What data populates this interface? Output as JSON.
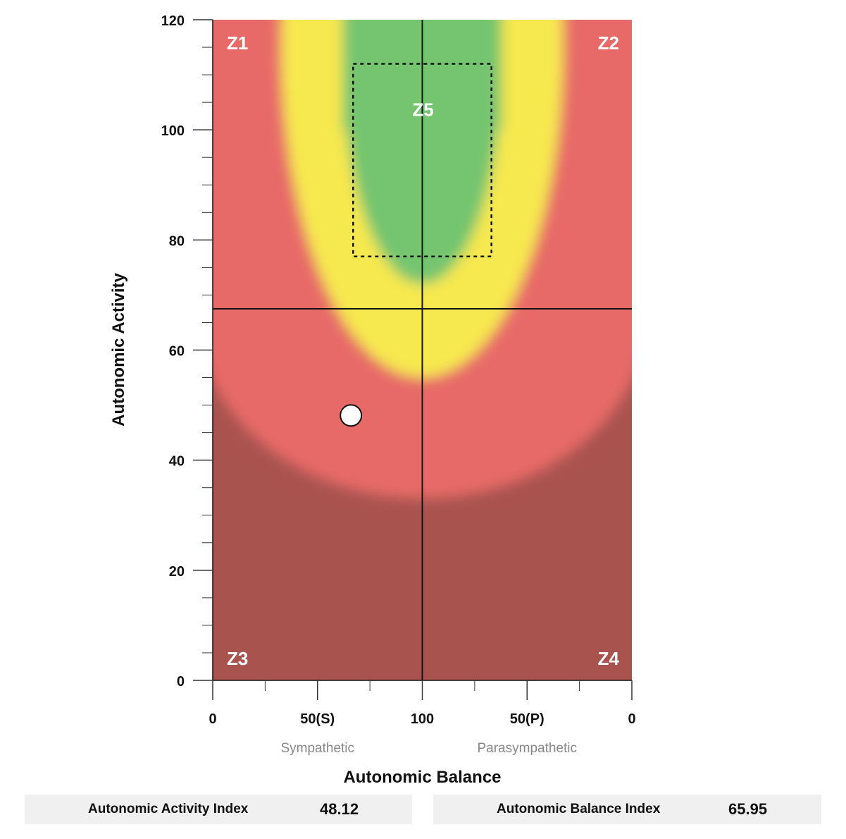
{
  "chart_data": {
    "type": "scatter",
    "x_axis": {
      "label": "Autonomic Balance",
      "tick_labels": [
        "0",
        "50(S)",
        "100",
        "50(P)",
        "0"
      ],
      "side_labels": [
        "Sympathetic",
        "Parasympathetic"
      ]
    },
    "y_axis": {
      "label": "Autonomic Activity",
      "ylim": [
        0,
        120
      ],
      "ticks": [
        "0",
        "20",
        "40",
        "60",
        "80",
        "100",
        "120"
      ],
      "minor_step": 5
    },
    "zones": [
      "Z1",
      "Z2",
      "Z3",
      "Z4",
      "Z5"
    ],
    "target_zone": {
      "label": "Z5",
      "balance_left": 67,
      "balance_right": 67,
      "activity_range": [
        77,
        112
      ]
    },
    "threshold_activity": 67.5,
    "point": {
      "activity": 48.12,
      "balance": 65.95,
      "side": "S"
    },
    "colors": {
      "red": "#e76a67",
      "dark_red": "#a9534f",
      "yellow": "#f6e84f",
      "green": "#74c56f"
    }
  },
  "indices": {
    "activity_label": "Autonomic Activity Index",
    "activity_value": "48.12",
    "balance_label": "Autonomic Balance Index",
    "balance_value": "65.95"
  }
}
